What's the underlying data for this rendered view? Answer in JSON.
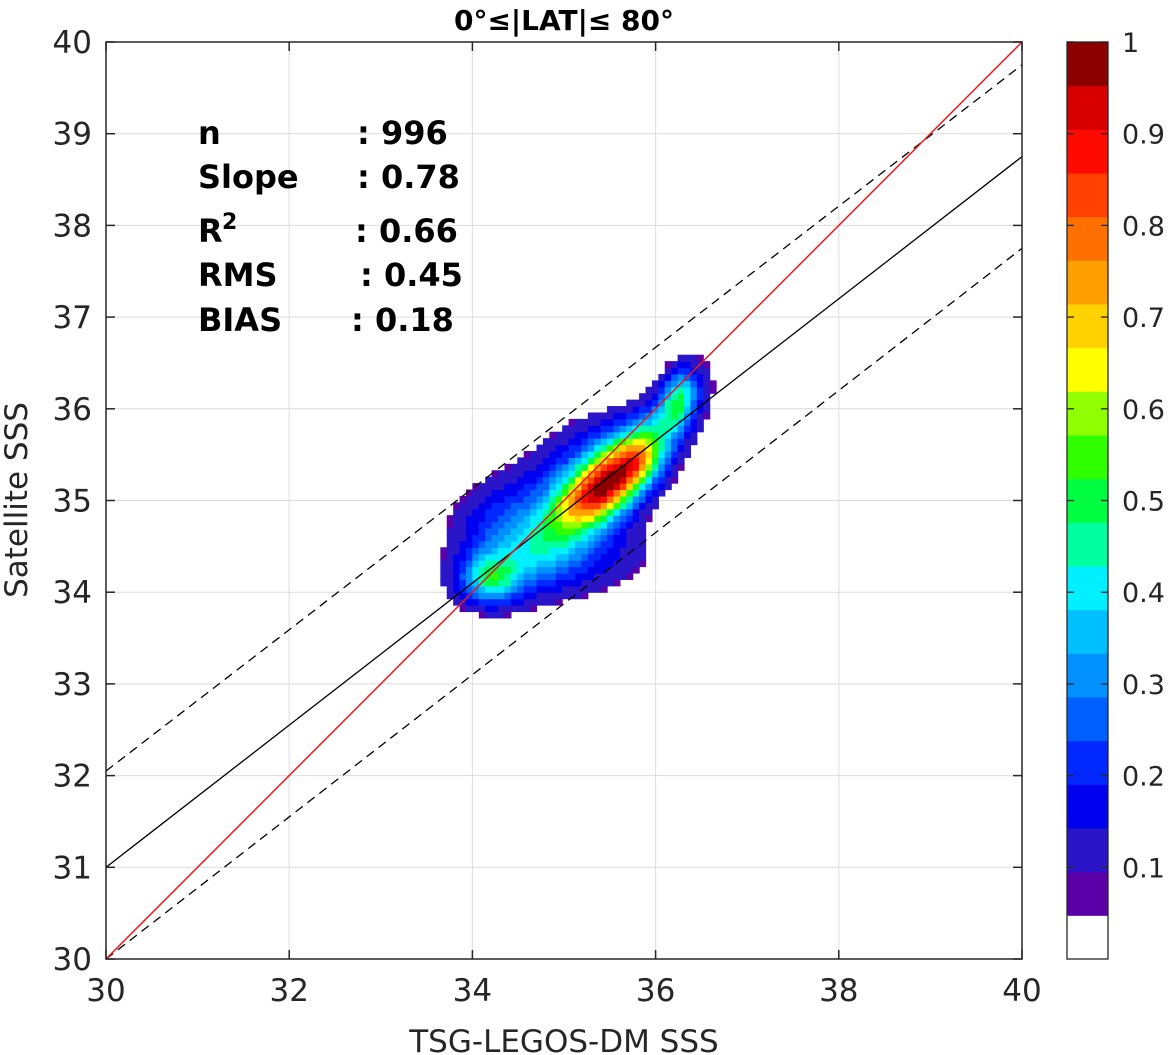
{
  "chart_data": {
    "type": "contour",
    "title": "0°≤|LAT|≤ 80°",
    "xlabel": "TSG-LEGOS-DM SSS",
    "ylabel": "Satellite SSS",
    "xlim": [
      30,
      40
    ],
    "ylim": [
      30,
      40
    ],
    "xticks": [
      "30",
      "32",
      "34",
      "36",
      "38",
      "40"
    ],
    "yticks": [
      "30",
      "31",
      "32",
      "33",
      "34",
      "35",
      "36",
      "37",
      "38",
      "39",
      "40"
    ],
    "grid": true,
    "stats": {
      "n_label": "n",
      "n_value": ": 996",
      "slope_label": "Slope",
      "slope_value": ": 0.78",
      "r2_label": "R",
      "r2_sup": "2",
      "r2_value": ": 0.66",
      "rms_label": "RMS",
      "rms_value": ": 0.45",
      "bias_label": "BIAS",
      "bias_value": ": 0.18"
    },
    "lines": [
      {
        "name": "one-to-one",
        "color": "#e8191b",
        "style": "solid",
        "slope": 1.0,
        "intercept": 0
      },
      {
        "name": "regression",
        "color": "#000000",
        "style": "solid",
        "slope": 0.78,
        "intercept_at_x30": 31.0
      },
      {
        "name": "upper-bound",
        "color": "#000000",
        "style": "dashed",
        "offset": 2.0
      },
      {
        "name": "lower-bound",
        "color": "#000000",
        "style": "dashed",
        "offset": -2.25
      }
    ],
    "density": {
      "peak_center": [
        35.5,
        35.2
      ],
      "secondary_peak": [
        34.2,
        34.2
      ],
      "max_normalized": 1.0
    },
    "colorbar": {
      "range": [
        0,
        1
      ],
      "ticks": [
        "0.1",
        "0.2",
        "0.3",
        "0.4",
        "0.5",
        "0.6",
        "0.7",
        "0.8",
        "0.9",
        "1"
      ],
      "colors": [
        "#ffffff",
        "#5b00a8",
        "#2a15c8",
        "#0000f0",
        "#0028ff",
        "#0060ff",
        "#0090ff",
        "#00c0ff",
        "#00f0ff",
        "#00ffa0",
        "#00ff40",
        "#30ff00",
        "#90ff00",
        "#ffff00",
        "#ffd200",
        "#ffa000",
        "#ff7000",
        "#ff4000",
        "#ff0a00",
        "#d80000",
        "#8c0000"
      ]
    }
  }
}
